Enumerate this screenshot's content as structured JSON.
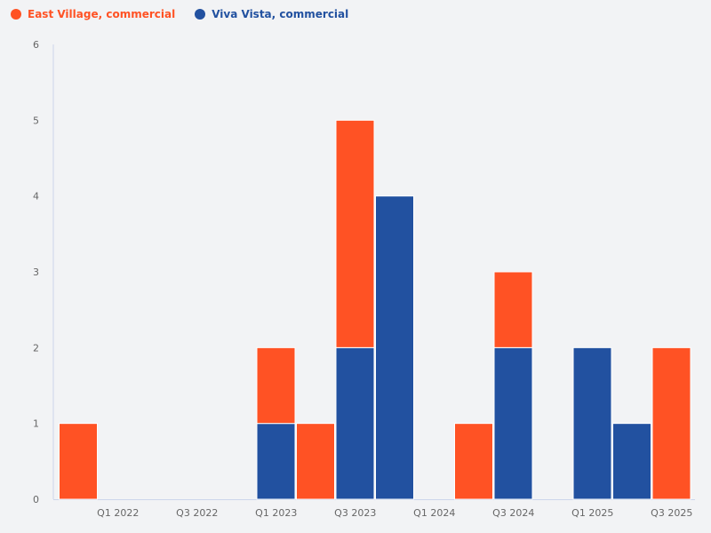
{
  "chart_data": {
    "type": "bar",
    "stacked": true,
    "categories": [
      "Q4 2021",
      "Q1 2022",
      "Q2 2022",
      "Q3 2022",
      "Q4 2022",
      "Q1 2023",
      "Q2 2023",
      "Q3 2023",
      "Q4 2023",
      "Q1 2024",
      "Q2 2024",
      "Q3 2024",
      "Q4 2024",
      "Q1 2025",
      "Q2 2025",
      "Q3 2025"
    ],
    "x_tick_labels": [
      "Q1 2022",
      "Q3 2022",
      "Q1 2023",
      "Q3 2023",
      "Q1 2024",
      "Q3 2024",
      "Q1 2025",
      "Q3 2025"
    ],
    "series": [
      {
        "name": "Viva Vista, commercial",
        "color": "#2251a0",
        "values": [
          0,
          0,
          0,
          0,
          0,
          1,
          0,
          2,
          4,
          0,
          0,
          2,
          0,
          2,
          1,
          0
        ]
      },
      {
        "name": "East Village, commercial",
        "color": "#ff5224",
        "values": [
          1,
          0,
          0,
          0,
          0,
          1,
          1,
          3,
          0,
          0,
          1,
          1,
          0,
          0,
          0,
          2
        ]
      }
    ],
    "ylim": [
      0,
      6
    ],
    "y_ticks": [
      "0",
      "1",
      "2",
      "3",
      "4",
      "5",
      "6"
    ],
    "grid": false,
    "legend_position": "top-left",
    "legend_order": [
      "East Village, commercial",
      "Viva Vista, commercial"
    ]
  }
}
